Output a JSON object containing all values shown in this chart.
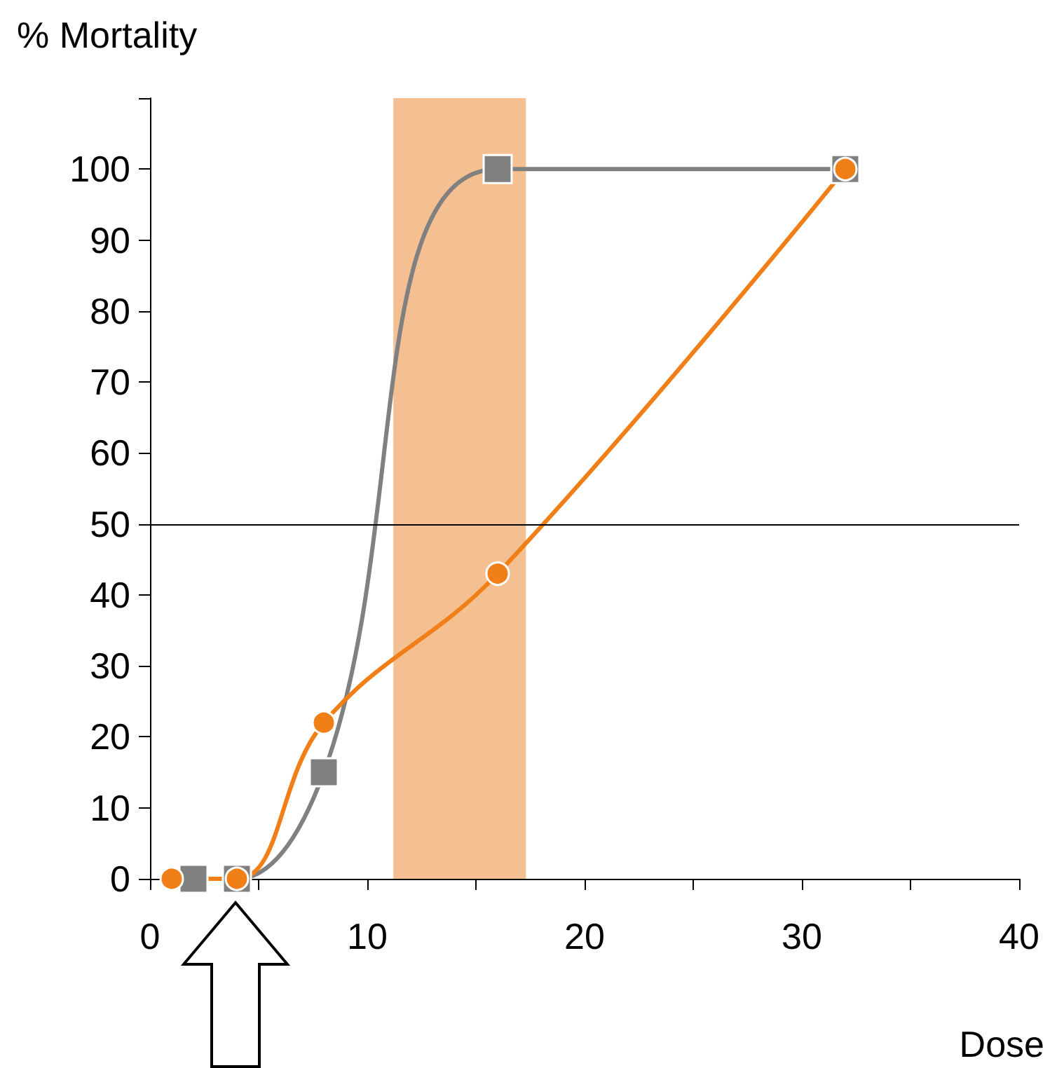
{
  "chart_data": {
    "type": "line",
    "ylabel": "% Mortality",
    "xlabel": "Dose",
    "xlim": [
      0,
      40
    ],
    "xticks": [
      0,
      {
        "value": 5,
        "label": null
      },
      10,
      {
        "value": 15,
        "label": null
      },
      20,
      {
        "value": 25,
        "label": null
      },
      30,
      {
        "value": 35,
        "label": null
      },
      40
    ],
    "ylim": [
      0,
      110
    ],
    "yticks": [
      0,
      10,
      20,
      30,
      40,
      50,
      60,
      70,
      80,
      90,
      100,
      {
        "value": 110,
        "label": null
      }
    ],
    "series": [
      {
        "color": "#808080",
        "marker": "square",
        "x": [
          2,
          4,
          8,
          16,
          32
        ],
        "values": [
          0,
          0,
          15,
          100,
          100
        ]
      },
      {
        "color": "#f07f17",
        "marker": "circle",
        "x": [
          1,
          4,
          8,
          16,
          32
        ],
        "values": [
          0,
          0,
          22,
          43,
          100
        ]
      }
    ],
    "ref_lines": [
      {
        "axis": "y",
        "value": 50,
        "color": "#000000"
      }
    ],
    "bands": [
      {
        "axis": "x",
        "from": 11.2,
        "to": 17.3,
        "color": "#e8730c"
      }
    ]
  }
}
